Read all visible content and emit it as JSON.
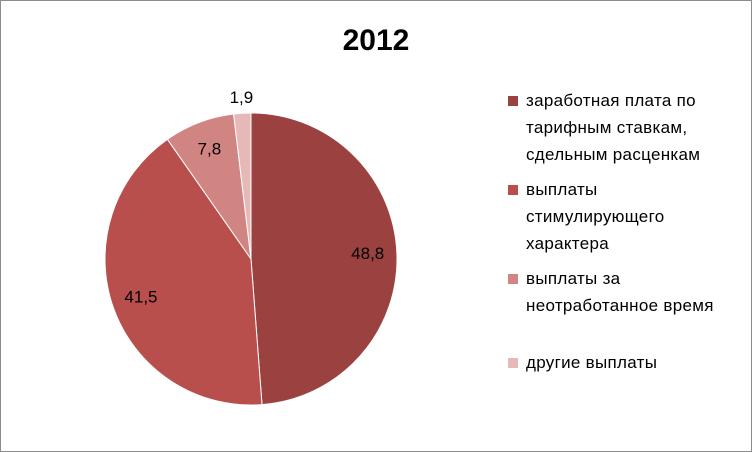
{
  "chart_data": {
    "type": "pie",
    "title": "2012",
    "categories": [
      "заработная плата по тарифным ставкам, сдельным расценкам",
      "выплаты стимулирующего характера",
      "выплаты за неотработанное время",
      "другие выплаты"
    ],
    "values": [
      48.8,
      41.5,
      7.8,
      1.9
    ],
    "value_labels": [
      "48,8",
      "41,5",
      "7,8",
      "1,9"
    ],
    "colors": [
      "#9b4240",
      "#b94f4c",
      "#d08583",
      "#e6b9b8"
    ],
    "legend": "right"
  }
}
